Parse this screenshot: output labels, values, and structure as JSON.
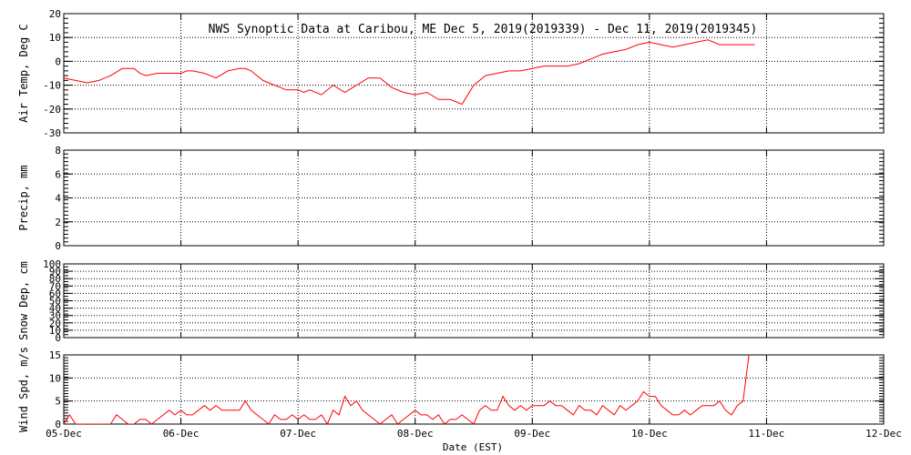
{
  "title": "NWS Synoptic Data at Caribou, ME   Dec  5, 2019(2019339) - Dec 11, 2019(2019345)",
  "xlabel": "Date (EST)",
  "x_ticks": [
    "05-Dec",
    "06-Dec",
    "07-Dec",
    "08-Dec",
    "09-Dec",
    "10-Dec",
    "11-Dec",
    "12-Dec"
  ],
  "colors": {
    "series": "#ff0000",
    "axes": "#000000",
    "grid": "#000000"
  },
  "chart_data": [
    {
      "type": "line",
      "ylabel": "Air Temp, Deg C",
      "ylim": [
        -30,
        20
      ],
      "yticks": [
        -30,
        -20,
        -10,
        0,
        10,
        20
      ],
      "xlim": [
        0,
        7
      ],
      "grid": true,
      "x": [
        0.0,
        0.1,
        0.2,
        0.3,
        0.4,
        0.5,
        0.6,
        0.65,
        0.7,
        0.8,
        0.9,
        1.0,
        1.05,
        1.1,
        1.2,
        1.3,
        1.4,
        1.5,
        1.55,
        1.6,
        1.7,
        1.8,
        1.9,
        2.0,
        2.05,
        2.1,
        2.2,
        2.3,
        2.4,
        2.5,
        2.6,
        2.7,
        2.8,
        2.9,
        3.0,
        3.1,
        3.2,
        3.3,
        3.35,
        3.4,
        3.5,
        3.6,
        3.7,
        3.8,
        3.9,
        4.0,
        4.1,
        4.2,
        4.3,
        4.4,
        4.5,
        4.6,
        4.7,
        4.8,
        4.9,
        5.0,
        5.1,
        5.2,
        5.3,
        5.4,
        5.5,
        5.6,
        5.7,
        5.8,
        5.9
      ],
      "values": [
        -7,
        -8,
        -9,
        -8,
        -6,
        -3,
        -3,
        -5,
        -6,
        -5,
        -5,
        -5,
        -4,
        -4,
        -5,
        -7,
        -4,
        -3,
        -3,
        -4,
        -8,
        -10,
        -12,
        -12,
        -13,
        -12,
        -14,
        -10,
        -13,
        -10,
        -7,
        -7,
        -11,
        -13,
        -14,
        -13,
        -16,
        -16,
        -17,
        -18,
        -10,
        -6,
        -5,
        -4,
        -4,
        -3,
        -2,
        -2,
        -2,
        -1,
        1,
        3,
        4,
        5,
        7,
        8,
        7,
        6,
        7,
        8,
        9,
        7,
        7,
        7,
        7
      ]
    },
    {
      "type": "line",
      "ylabel": "Precip, mm",
      "ylim": [
        0,
        8
      ],
      "yticks": [
        0,
        2,
        4,
        6,
        8
      ],
      "xlim": [
        0,
        7
      ],
      "grid": true,
      "x": [],
      "values": []
    },
    {
      "type": "line",
      "ylabel": "Snow Dep, cm",
      "ylim": [
        0,
        100
      ],
      "yticks": [
        0,
        10,
        20,
        30,
        40,
        50,
        60,
        70,
        80,
        90,
        100
      ],
      "xlim": [
        0,
        7
      ],
      "grid": true,
      "x": [],
      "values": []
    },
    {
      "type": "line",
      "ylabel": "Wind Spd, m/s",
      "ylim": [
        0,
        15
      ],
      "yticks": [
        0,
        5,
        10,
        15
      ],
      "xlim": [
        0,
        7
      ],
      "grid": true,
      "x": [
        0.0,
        0.05,
        0.1,
        0.15,
        0.2,
        0.3,
        0.4,
        0.45,
        0.5,
        0.55,
        0.6,
        0.65,
        0.7,
        0.75,
        0.8,
        0.85,
        0.9,
        0.95,
        1.0,
        1.05,
        1.1,
        1.15,
        1.2,
        1.25,
        1.3,
        1.35,
        1.4,
        1.45,
        1.5,
        1.55,
        1.6,
        1.65,
        1.7,
        1.75,
        1.8,
        1.85,
        1.9,
        1.95,
        2.0,
        2.05,
        2.1,
        2.15,
        2.2,
        2.25,
        2.3,
        2.35,
        2.4,
        2.45,
        2.5,
        2.55,
        2.6,
        2.65,
        2.7,
        2.75,
        2.8,
        2.85,
        2.9,
        2.95,
        3.0,
        3.05,
        3.1,
        3.15,
        3.2,
        3.25,
        3.3,
        3.35,
        3.4,
        3.45,
        3.5,
        3.55,
        3.6,
        3.65,
        3.7,
        3.75,
        3.8,
        3.85,
        3.9,
        3.95,
        4.0,
        4.05,
        4.1,
        4.15,
        4.2,
        4.25,
        4.3,
        4.35,
        4.4,
        4.45,
        4.5,
        4.55,
        4.6,
        4.65,
        4.7,
        4.75,
        4.8,
        4.85,
        4.9,
        4.95,
        5.0,
        5.05,
        5.1,
        5.15,
        5.2,
        5.25,
        5.3,
        5.35,
        5.4,
        5.45,
        5.5,
        5.55,
        5.6,
        5.65,
        5.7,
        5.75,
        5.8,
        5.85
      ],
      "values": [
        0,
        2,
        0,
        0,
        0,
        0,
        0,
        2,
        1,
        0,
        0,
        1,
        1,
        0,
        1,
        2,
        3,
        2,
        3,
        2,
        2,
        3,
        4,
        3,
        4,
        3,
        3,
        3,
        3,
        5,
        3,
        2,
        1,
        0,
        2,
        1,
        1,
        2,
        1,
        2,
        1,
        1,
        2,
        0,
        3,
        2,
        6,
        4,
        5,
        3,
        2,
        1,
        0,
        1,
        2,
        0,
        1,
        2,
        3,
        2,
        2,
        1,
        2,
        0,
        1,
        1,
        2,
        1,
        0,
        3,
        4,
        3,
        3,
        6,
        4,
        3,
        4,
        3,
        4,
        4,
        4,
        5,
        4,
        4,
        3,
        2,
        4,
        3,
        3,
        2,
        4,
        3,
        2,
        4,
        3,
        4,
        5,
        7,
        6,
        6,
        4,
        3,
        2,
        2,
        3,
        2,
        3,
        4,
        4,
        4,
        5,
        3,
        2,
        4,
        5,
        15
      ]
    }
  ]
}
